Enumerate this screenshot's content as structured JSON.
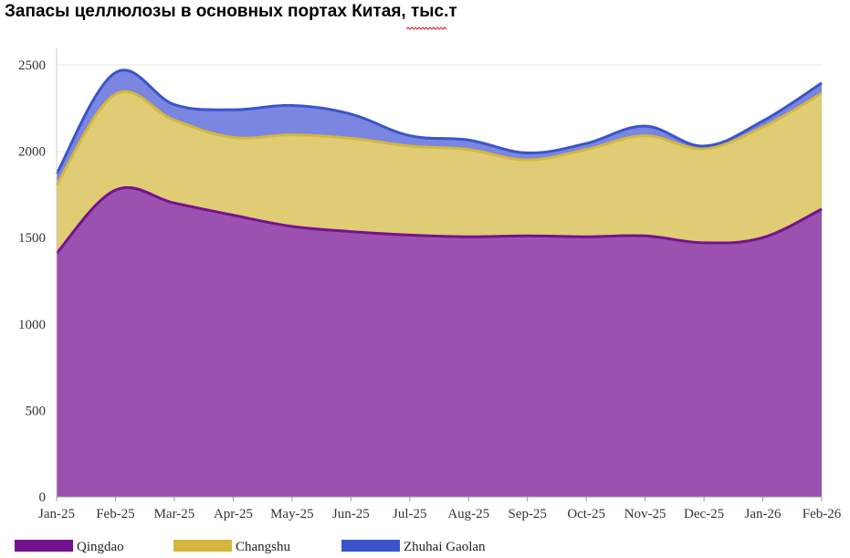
{
  "chart_data": {
    "type": "area",
    "stacked": true,
    "title": "Запасы целлюлозы в основных портах Китая, тыс.т",
    "xlabel": "",
    "ylabel": "",
    "categories": [
      "Jan-25",
      "Feb-25",
      "Mar-25",
      "Apr-25",
      "May-25",
      "Jun-25",
      "Jul-25",
      "Aug-25",
      "Sep-25",
      "Oct-25",
      "Nov-25",
      "Dec-25",
      "Jan-26",
      "Feb-26"
    ],
    "ylim": [
      0,
      2500
    ],
    "yticks": [
      0,
      500,
      1000,
      1500,
      2000,
      2500
    ],
    "grid": true,
    "legend_position": "bottom",
    "series": [
      {
        "name": "Qingdao",
        "color": "#74128e",
        "fill": "#9b51b0",
        "values": [
          1410,
          1775,
          1700,
          1630,
          1565,
          1535,
          1515,
          1505,
          1510,
          1505,
          1510,
          1470,
          1500,
          1665
        ]
      },
      {
        "name": "Changshu",
        "color": "#d4b73a",
        "fill": "#dfcc75",
        "values": [
          395,
          555,
          480,
          450,
          530,
          540,
          515,
          505,
          440,
          505,
          580,
          545,
          640,
          670
        ]
      },
      {
        "name": "Zhuhai Gaolan",
        "color": "#3b54cc",
        "fill": "#7a86e0",
        "values": [
          65,
          125,
          90,
          160,
          170,
          140,
          60,
          55,
          40,
          35,
          55,
          15,
          35,
          60
        ]
      }
    ]
  }
}
